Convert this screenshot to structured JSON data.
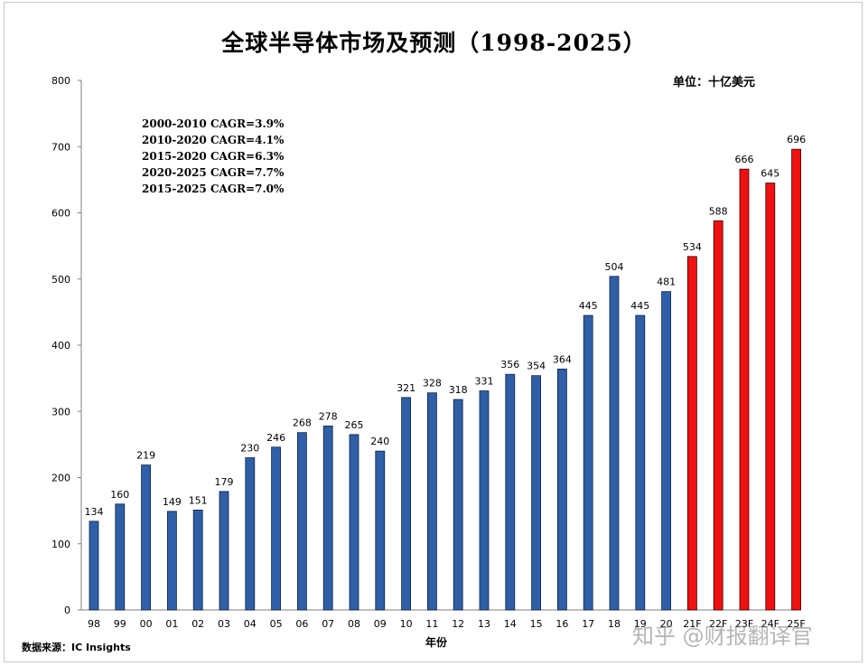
{
  "chart_data": {
    "type": "bar",
    "title": "全球半导体市场及预测（1998-2025）",
    "unit_label": "单位：十亿美元",
    "xlabel": "年份",
    "ylabel": "",
    "ylim": [
      0,
      800
    ],
    "yticks": [
      "0",
      "100",
      "200",
      "300",
      "400",
      "500",
      "600",
      "700",
      "800"
    ],
    "categories": [
      "98",
      "99",
      "00",
      "01",
      "02",
      "03",
      "04",
      "05",
      "06",
      "07",
      "08",
      "09",
      "10",
      "11",
      "12",
      "13",
      "14",
      "15",
      "16",
      "17",
      "18",
      "19",
      "20",
      "21F",
      "22F",
      "23F",
      "24F",
      "25F"
    ],
    "values": [
      134,
      160,
      219,
      149,
      151,
      179,
      230,
      246,
      268,
      278,
      265,
      240,
      321,
      328,
      318,
      331,
      356,
      354,
      364,
      445,
      504,
      445,
      481,
      534,
      588,
      666,
      645,
      696
    ],
    "actual_color": "#2e5fa8",
    "forecast_color": "#ee1111",
    "forecast_start_index": 23,
    "annotations": [
      "2000-2010  CAGR=3.9%",
      "2010-2020  CAGR=4.1%",
      "2015-2020  CAGR=6.3%",
      "2020-2025  CAGR=7.7%",
      "2015-2025  CAGR=7.0%"
    ],
    "grid": false,
    "legend": "none"
  },
  "source": "数据来源：IC Insights",
  "watermark": "知乎 @财报翻译官"
}
